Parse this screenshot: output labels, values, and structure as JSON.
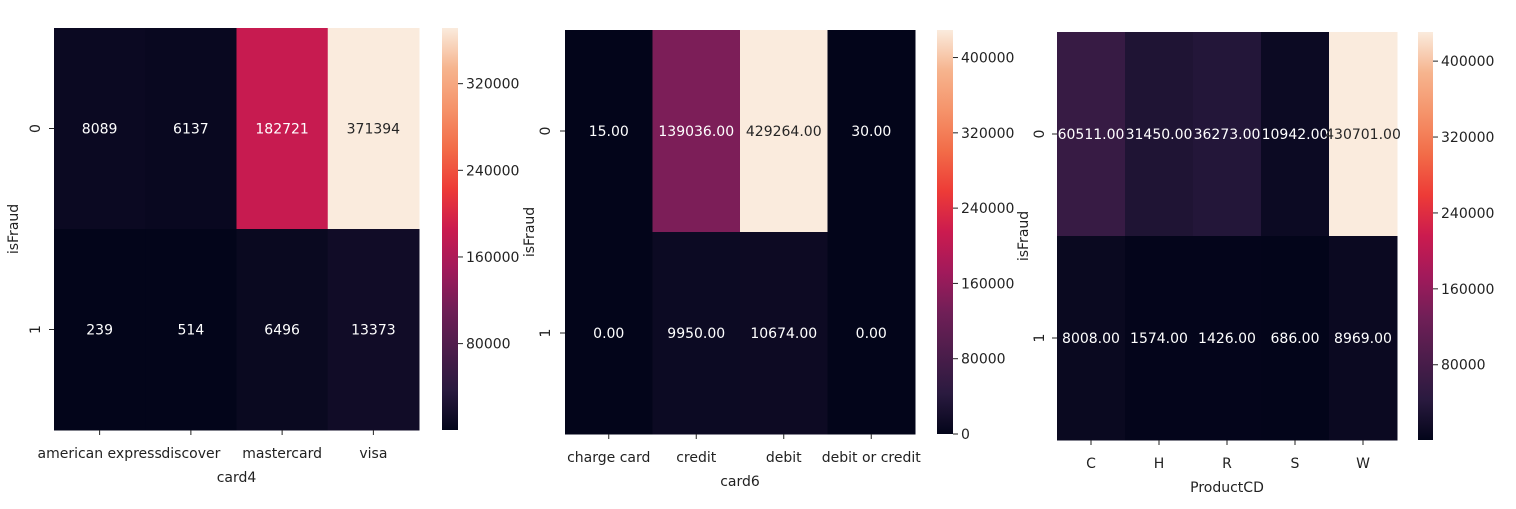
{
  "colorscale": {
    "name": "rocket",
    "stops": [
      "#03051a",
      "#2a1a3f",
      "#4c1d4b",
      "#701f57",
      "#a11a5b",
      "#cb1b4f",
      "#ed3b37",
      "#f26c48",
      "#f5936a",
      "#f6b48e",
      "#faebdd"
    ]
  },
  "chart_data": [
    {
      "type": "heatmap",
      "xlabel": "card4",
      "ylabel": "isFraud",
      "x": [
        "american express",
        "discover",
        "mastercard",
        "visa"
      ],
      "y": [
        "0",
        "1"
      ],
      "values": [
        [
          8089,
          6137,
          182721,
          371394
        ],
        [
          239,
          514,
          6496,
          13373
        ]
      ],
      "cell_labels": [
        [
          "8089",
          "6137",
          "182721",
          "371394"
        ],
        [
          "239",
          "514",
          "6496",
          "13373"
        ]
      ],
      "vmin": 239,
      "vmax": 371394,
      "colorbar_ticks": [
        80000,
        160000,
        240000,
        320000
      ],
      "colorbar_tick_labels": [
        "80000",
        "160000",
        "240000",
        "320000"
      ]
    },
    {
      "type": "heatmap",
      "xlabel": "card6",
      "ylabel": "isFraud",
      "x": [
        "charge card",
        "credit",
        "debit",
        "debit or credit"
      ],
      "y": [
        "0",
        "1"
      ],
      "values": [
        [
          15,
          139036,
          429264,
          30
        ],
        [
          0,
          9950,
          10674,
          0
        ]
      ],
      "cell_labels": [
        [
          "15.00",
          "139036.00",
          "429264.00",
          "30.00"
        ],
        [
          "0.00",
          "9950.00",
          "10674.00",
          "0.00"
        ]
      ],
      "vmin": 0,
      "vmax": 429264,
      "colorbar_ticks": [
        0,
        80000,
        160000,
        240000,
        320000,
        400000
      ],
      "colorbar_tick_labels": [
        "0",
        "80000",
        "160000",
        "240000",
        "320000",
        "400000"
      ]
    },
    {
      "type": "heatmap",
      "xlabel": "ProductCD",
      "ylabel": "isFraud",
      "x": [
        "C",
        "H",
        "R",
        "S",
        "W"
      ],
      "y": [
        "0",
        "1"
      ],
      "values": [
        [
          60511,
          31450,
          36273,
          10942,
          430701
        ],
        [
          8008,
          1574,
          1426,
          686,
          8969
        ]
      ],
      "cell_labels": [
        [
          "60511.00",
          "31450.00",
          "36273.00",
          "10942.00",
          "430701.00"
        ],
        [
          "8008.00",
          "1574.00",
          "1426.00",
          "686.00",
          "8969.00"
        ]
      ],
      "vmin": 686,
      "vmax": 430701,
      "colorbar_ticks": [
        80000,
        160000,
        240000,
        320000,
        400000
      ],
      "colorbar_tick_labels": [
        "80000",
        "160000",
        "240000",
        "320000",
        "400000"
      ]
    }
  ]
}
